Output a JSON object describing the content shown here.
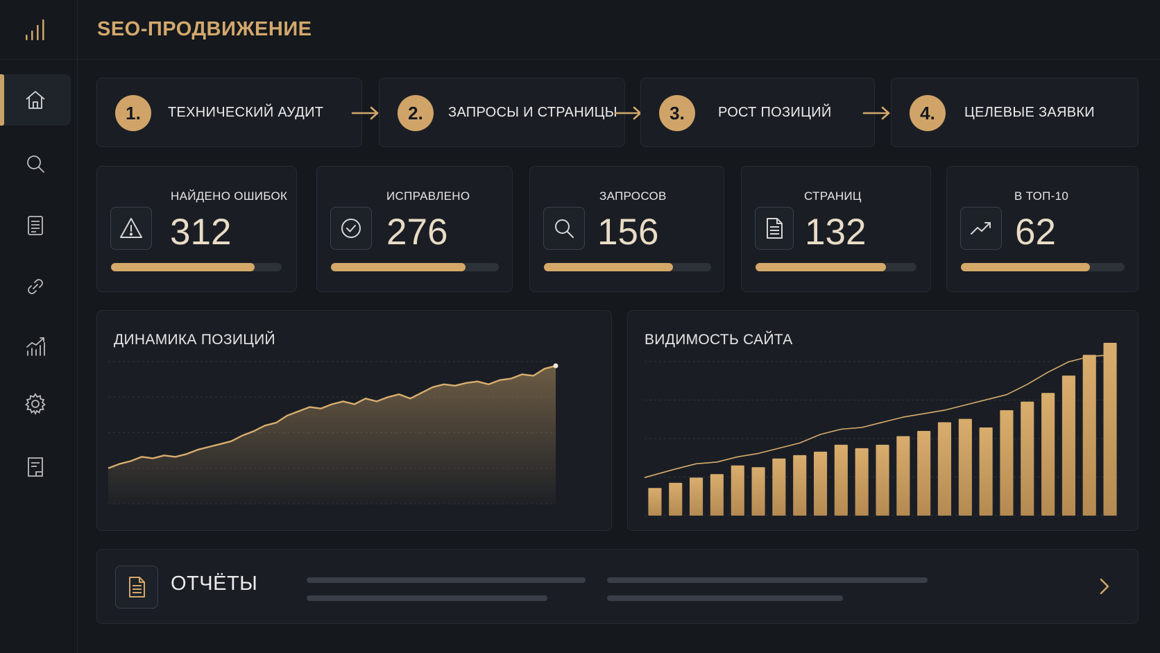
{
  "header": {
    "title": "SEO-ПРОДВИЖЕНИЕ"
  },
  "sidebar": {
    "logo_icon": "bar-chart-logo-icon",
    "items": [
      {
        "icon": "home-icon",
        "active": true
      },
      {
        "icon": "search-icon",
        "active": false
      },
      {
        "icon": "document-icon",
        "active": false
      },
      {
        "icon": "link-icon",
        "active": false
      },
      {
        "icon": "growth-chart-icon",
        "active": false
      },
      {
        "icon": "gear-icon",
        "active": false
      },
      {
        "icon": "report-icon",
        "active": false
      }
    ]
  },
  "steps": [
    {
      "num": "1.",
      "label": "ТЕХНИЧЕСКИЙ АУДИТ"
    },
    {
      "num": "2.",
      "label": "ЗАПРОСЫ И СТРАНИЦЫ"
    },
    {
      "num": "3.",
      "label": "РОСТ ПОЗИЦИЙ"
    },
    {
      "num": "4.",
      "label": "ЦЕЛЕВЫЕ ЗАЯВКИ"
    }
  ],
  "stats": [
    {
      "label": "НАЙДЕНО ОШИБОК",
      "value": "312",
      "icon": "warning-icon",
      "progress": 0.84
    },
    {
      "label": "ИСПРАВЛЕНО",
      "value": "276",
      "icon": "check-circle-icon",
      "progress": 0.8
    },
    {
      "label": "ЗАПРОСОВ",
      "value": "156",
      "icon": "search-icon",
      "progress": 0.77
    },
    {
      "label": "СТРАНИЦ",
      "value": "132",
      "icon": "document-icon",
      "progress": 0.81
    },
    {
      "label": "В ТОП-10",
      "value": "62",
      "icon": "trend-up-icon",
      "progress": 0.79
    }
  ],
  "accent_color": "#d2a86c",
  "chart_data": [
    {
      "type": "area",
      "title": "ДИНАМИКА ПОЗИЦИЙ",
      "ylim": [
        0,
        100
      ],
      "grid": true,
      "series": [
        {
          "values": [
            25,
            28,
            30,
            33,
            32,
            34,
            33,
            35,
            38,
            40,
            42,
            44,
            48,
            51,
            55,
            57,
            62,
            65,
            68,
            67,
            70,
            72,
            70,
            74,
            72,
            75,
            77,
            74,
            78,
            82,
            84,
            83,
            85,
            86,
            84,
            87,
            88,
            91,
            90,
            95,
            97
          ]
        }
      ]
    },
    {
      "type": "bar",
      "title": "ВИДИМОСТЬ САЙТА",
      "ylim": [
        0,
        100
      ],
      "grid": true,
      "series": [
        {
          "type": "bar",
          "values": [
            16,
            19,
            22,
            24,
            29,
            28,
            33,
            35,
            37,
            41,
            39,
            41,
            46,
            49,
            54,
            56,
            51,
            61,
            66,
            71,
            81,
            93,
            100
          ]
        },
        {
          "type": "line",
          "values": [
            22,
            27,
            30,
            31,
            34,
            36,
            39,
            42,
            47,
            50,
            51,
            54,
            57,
            59,
            61,
            64,
            67,
            70,
            76,
            83,
            89,
            92,
            93
          ]
        }
      ]
    }
  ],
  "reports": {
    "title": "ОТЧЁТЫ"
  }
}
